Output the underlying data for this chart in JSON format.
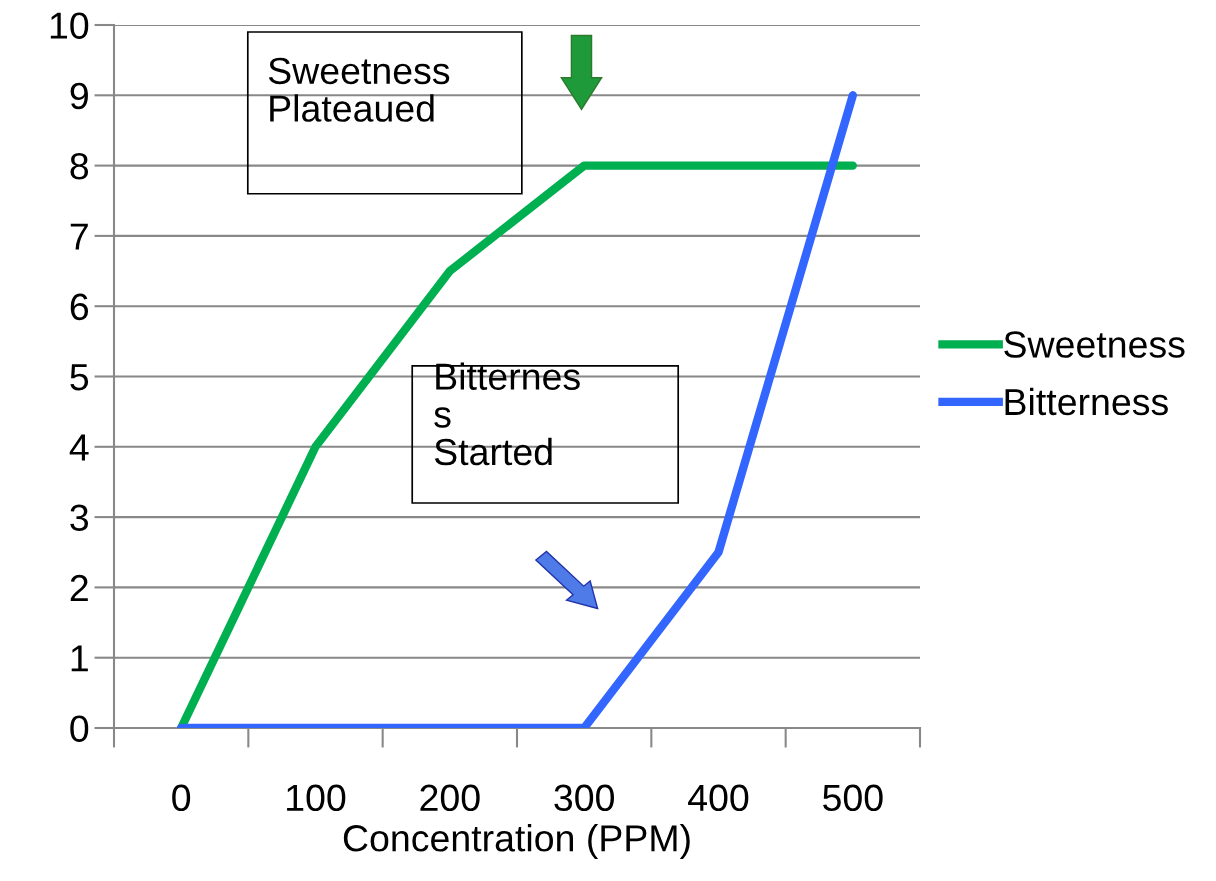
{
  "chart_data": {
    "type": "line",
    "xlabel": "Concentration (PPM)",
    "categories": [
      "0",
      "100",
      "200",
      "300",
      "400",
      "500"
    ],
    "series": [
      {
        "name": "Sweetness",
        "color": "#00b050",
        "values": [
          0,
          4,
          6.5,
          8,
          8,
          8
        ]
      },
      {
        "name": "Bitterness",
        "color": "#3366ff",
        "values": [
          0,
          0,
          0,
          0,
          2.5,
          9
        ]
      }
    ],
    "ylim": [
      0,
      10
    ],
    "yticks": [
      0,
      1,
      2,
      3,
      4,
      5,
      6,
      7,
      8,
      9,
      10
    ],
    "grid": "y",
    "legend": "right",
    "marker": "none",
    "line_style": "solid",
    "annotations": [
      "Sweetness\nPlateaued",
      "Bitternes\ns\nStarted"
    ]
  }
}
